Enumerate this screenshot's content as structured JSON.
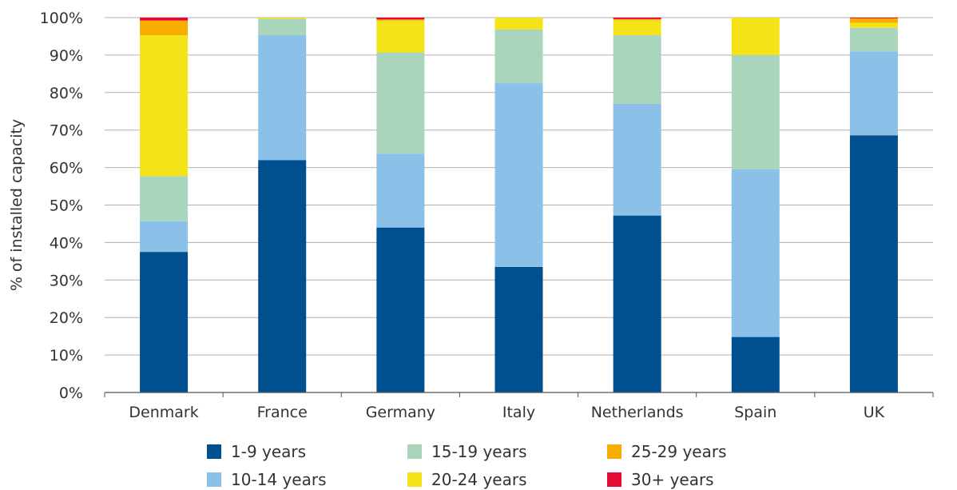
{
  "chart_data": {
    "type": "bar",
    "stacked": true,
    "title": "",
    "xlabel": "",
    "ylabel": "% of installed capacity",
    "ylim": [
      0,
      100
    ],
    "y_ticks": [
      "0%",
      "10%",
      "20%",
      "30%",
      "40%",
      "50%",
      "60%",
      "70%",
      "80%",
      "90%",
      "100%"
    ],
    "grid": "horizontal",
    "legend_position": "bottom",
    "categories": [
      "Denmark",
      "France",
      "Germany",
      "Italy",
      "Netherlands",
      "Spain",
      "UK"
    ],
    "series": [
      {
        "name": "1-9 years",
        "color": "#004f8f",
        "values": [
          37.5,
          62.0,
          44.0,
          33.5,
          47.2,
          14.8,
          68.6
        ]
      },
      {
        "name": "10-14 years",
        "color": "#8bc1e9",
        "values": [
          8.2,
          33.3,
          19.7,
          49.0,
          29.8,
          44.7,
          22.4
        ]
      },
      {
        "name": "15-19 years",
        "color": "#a8d5bc",
        "values": [
          12.0,
          4.4,
          27.0,
          14.3,
          18.3,
          30.5,
          6.3
        ]
      },
      {
        "name": "20-24 years",
        "color": "#f5e31a",
        "values": [
          37.6,
          0.3,
          8.5,
          3.2,
          4.0,
          10.0,
          1.3
        ]
      },
      {
        "name": "25-29 years",
        "color": "#f7ac00",
        "values": [
          3.9,
          0.0,
          0.3,
          0.0,
          0.3,
          0.0,
          1.2
        ]
      },
      {
        "name": "30+ years",
        "color": "#e30b36",
        "values": [
          0.8,
          0.0,
          0.5,
          0.0,
          0.4,
          0.0,
          0.2
        ]
      }
    ]
  }
}
